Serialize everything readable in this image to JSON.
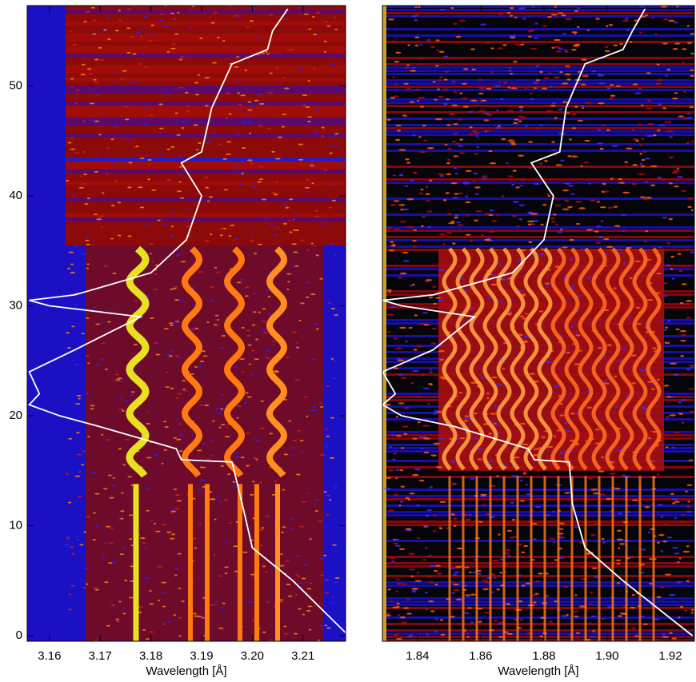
{
  "chart_data": [
    {
      "type": "line",
      "xlabel": "Wavelength [Å]",
      "xlim": [
        3.1556,
        3.2184
      ],
      "ylim": [
        -0.5,
        57.3
      ],
      "xticks": [
        3.16,
        3.17,
        3.18,
        3.19,
        {
          "value": 3.2,
          "label": "3.20"
        },
        3.21
      ],
      "yticks": [
        0,
        10,
        20,
        30,
        40,
        50
      ],
      "series": [
        {
          "color": "#ffffff",
          "x": [
            3.219,
            3.208,
            3.2,
            3.198,
            3.196,
            3.186,
            3.185,
            3.17,
            3.162,
            3.156,
            3.158,
            3.156,
            3.165,
            3.178,
            3.16,
            3.156,
            3.165,
            3.18,
            3.187,
            3.19,
            3.186,
            3.19,
            3.192,
            3.196,
            3.203,
            3.204,
            3.207
          ],
          "values": [
            0,
            5,
            8,
            12,
            15.8,
            16,
            17,
            19,
            20,
            21,
            22,
            24,
            26,
            29,
            30,
            30.5,
            31,
            33,
            36,
            40,
            43,
            44,
            48,
            52,
            53.3,
            55,
            57
          ]
        }
      ]
    },
    {
      "type": "line",
      "xlabel": "Wavelength [Å]",
      "xlim": [
        1.8289,
        1.9276
      ],
      "ylim": [
        -0.5,
        57.3
      ],
      "xticks": [
        1.84,
        1.86,
        1.88,
        {
          "value": 1.9,
          "label": "1.90"
        },
        1.92
      ],
      "series": [
        {
          "color": "#ffffff",
          "x": [
            1.927,
            1.905,
            1.893,
            1.889,
            1.888,
            1.877,
            1.875,
            1.852,
            1.835,
            1.829,
            1.833,
            1.829,
            1.845,
            1.858,
            1.835,
            1.829,
            1.845,
            1.87,
            1.88,
            1.883,
            1.876,
            1.885,
            1.887,
            1.893,
            1.905,
            1.908,
            1.912
          ],
          "values": [
            0,
            5,
            8,
            12,
            15.8,
            16,
            17,
            19,
            20,
            21,
            22,
            24,
            26,
            29,
            30,
            30.5,
            31,
            33,
            36,
            40,
            43,
            44,
            48,
            52,
            53.3,
            55,
            57
          ]
        }
      ]
    }
  ]
}
